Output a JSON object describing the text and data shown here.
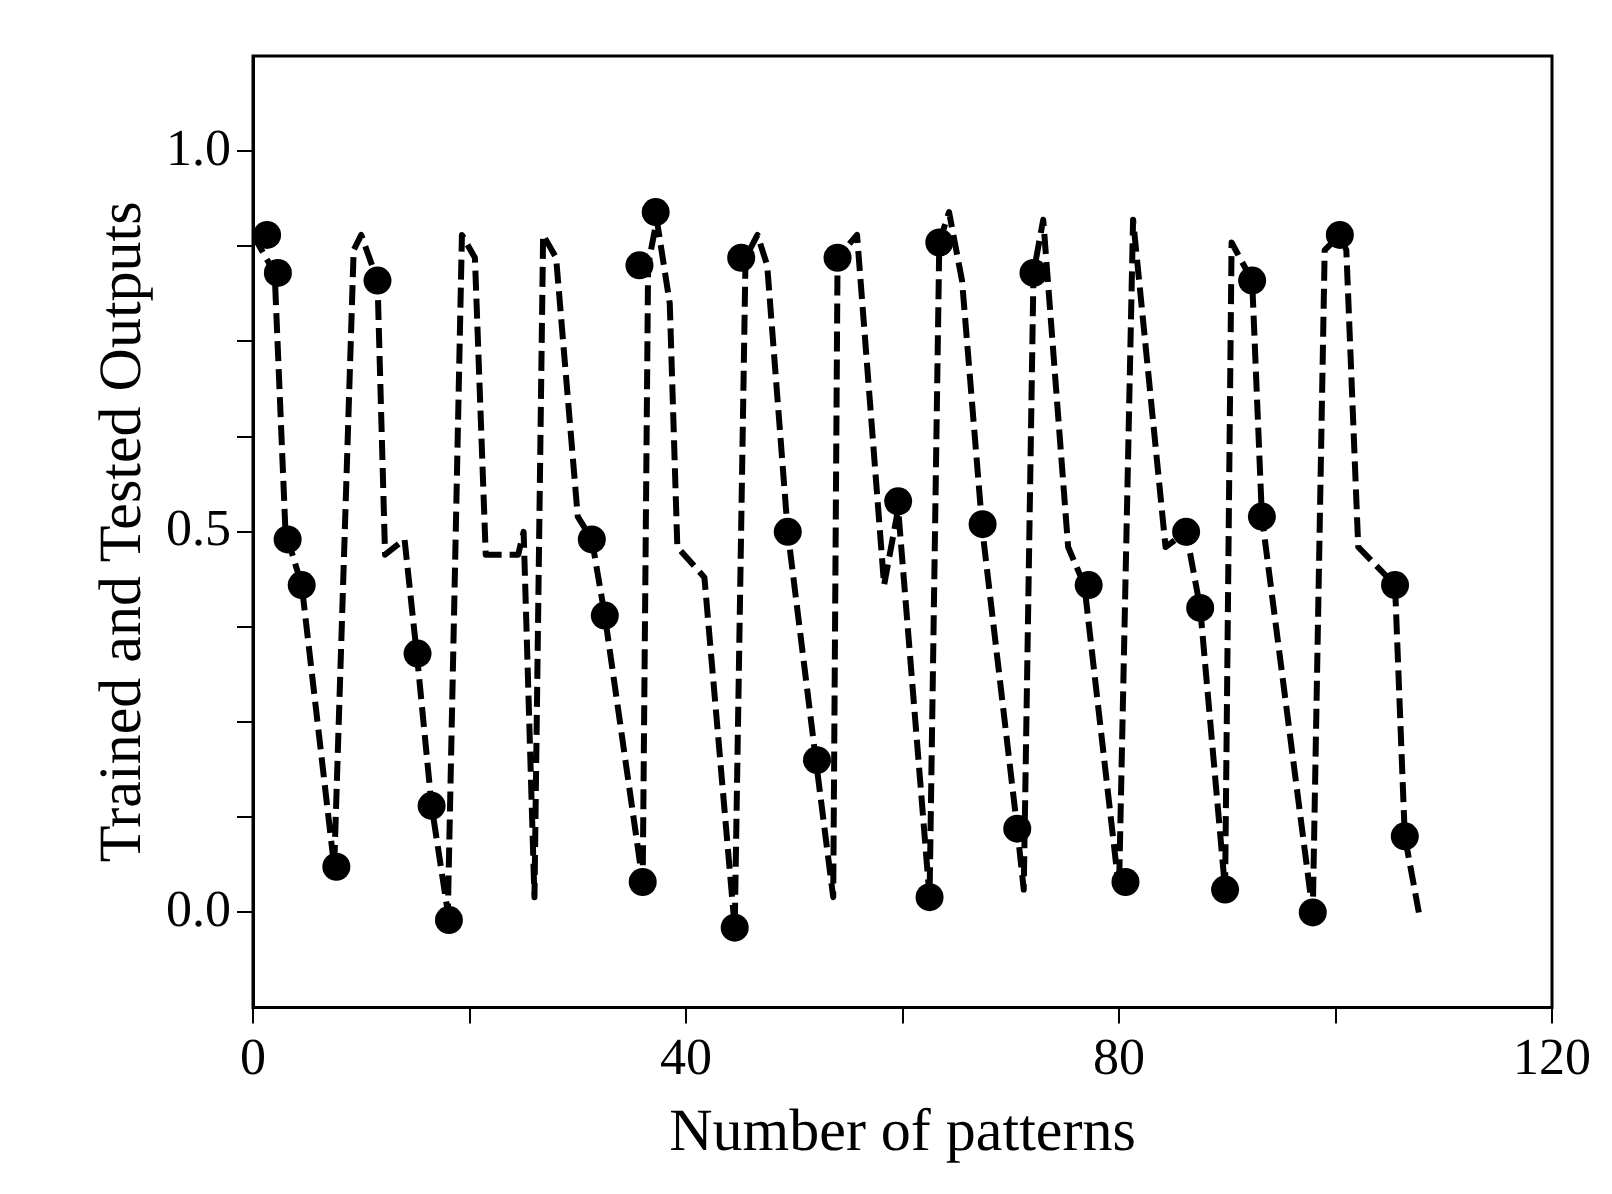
{
  "chart_data": {
    "type": "line",
    "xlabel": "Number of patterns",
    "ylabel": "Trained and Tested Outputs",
    "xlim": [
      0,
      120
    ],
    "xticks": [
      0,
      {
        "value": 20,
        "label": null
      },
      40,
      {
        "value": 60,
        "label": null
      },
      80,
      {
        "value": 100,
        "label": null
      },
      120
    ],
    "ylim": [
      -0.125,
      1.125
    ],
    "yticks": [
      {
        "value": 0,
        "label": "0.0"
      },
      {
        "value": 0.125,
        "label": null
      },
      {
        "value": 0.25,
        "label": null
      },
      {
        "value": 0.375,
        "label": null
      },
      {
        "value": 0.5,
        "label": "0.5"
      },
      {
        "value": 0.625,
        "label": null
      },
      {
        "value": 0.75,
        "label": null
      },
      {
        "value": 0.875,
        "label": null
      },
      {
        "value": 1,
        "label": "1.0"
      }
    ],
    "grid": false,
    "legend": false,
    "series": [
      {
        "color": "#000000",
        "marker": "none",
        "line_style": "dashed",
        "x": [
          0,
          2,
          3,
          4.5,
          7.5,
          9.3,
          10,
          11.5,
          12.2,
          14,
          15.2,
          16.5,
          18,
          19.3,
          20.5,
          21.5,
          24.5,
          25,
          26,
          26.8,
          28,
          30,
          31.3,
          32.5,
          36,
          36.5,
          37.3,
          38.5,
          39.2,
          41.7,
          44.5,
          45.5,
          46.6,
          47.5,
          49.4,
          52,
          53.6,
          54,
          55.8,
          58.3,
          59.6,
          62.5,
          63.4,
          64.3,
          65.5,
          67.4,
          70.6,
          71.2,
          72.1,
          73,
          75.3,
          76.8,
          80,
          81.3,
          84.3,
          86.2,
          87.5,
          89.8,
          90.4,
          92.3,
          93.2,
          97.9,
          99,
          100.4,
          101,
          102.1,
          105.5,
          106.4,
          107.7
        ],
        "values": [
          0.89,
          0.84,
          0.5,
          0.43,
          0.06,
          0.87,
          0.89,
          0.83,
          0.47,
          0.49,
          0.33,
          0.14,
          0.0,
          0.89,
          0.86,
          0.47,
          0.47,
          0.5,
          0.02,
          0.89,
          0.86,
          0.52,
          0.49,
          0.39,
          0.04,
          0.85,
          0.91,
          0.8,
          0.48,
          0.44,
          -0.02,
          0.86,
          0.89,
          0.85,
          0.5,
          0.2,
          0.02,
          0.86,
          0.89,
          0.43,
          0.53,
          0.02,
          0.88,
          0.92,
          0.83,
          0.5,
          0.11,
          0.03,
          0.84,
          0.91,
          0.48,
          0.43,
          0.03,
          0.91,
          0.48,
          0.5,
          0.4,
          0.03,
          0.88,
          0.83,
          0.52,
          0.0,
          0.87,
          0.89,
          0.87,
          0.48,
          0.43,
          0.1,
          0.0
        ]
      },
      {
        "type": "scatter",
        "color": "#000000",
        "marker": "circle",
        "x": [
          1.3,
          2.3,
          3.2,
          4.5,
          7.7,
          11.5,
          15.2,
          16.5,
          18.1,
          31.3,
          32.5,
          36,
          35.7,
          37.2,
          44.5,
          45.1,
          49.4,
          52.1,
          54,
          59.6,
          62.5,
          63.4,
          67.4,
          70.6,
          72.1,
          77.2,
          80.6,
          86.2,
          87.5,
          89.8,
          92.3,
          93.2,
          97.9,
          100.4,
          105.5,
          106.4
        ],
        "values": [
          0.89,
          0.84,
          0.49,
          0.43,
          0.06,
          0.83,
          0.34,
          0.14,
          -0.01,
          0.49,
          0.39,
          0.04,
          0.85,
          0.92,
          -0.02,
          0.86,
          0.5,
          0.2,
          0.86,
          0.54,
          0.02,
          0.88,
          0.51,
          0.11,
          0.84,
          0.43,
          0.04,
          0.5,
          0.4,
          0.03,
          0.83,
          0.52,
          0.0,
          0.89,
          0.43,
          0.1
        ]
      }
    ]
  }
}
